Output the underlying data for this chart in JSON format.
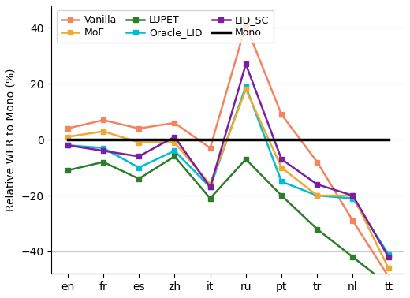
{
  "categories": [
    "en",
    "fr",
    "es",
    "zh",
    "it",
    "ru",
    "pt",
    "tr",
    "nl",
    "tt"
  ],
  "series_order": [
    "Vanilla",
    "Oracle_LID",
    "MoE",
    "LID_SC",
    "LUPET",
    "Mono"
  ],
  "series": {
    "Vanilla": [
      4,
      7,
      4,
      6,
      -3,
      41,
      9,
      -8,
      -29,
      -49
    ],
    "MoE": [
      1,
      3,
      -1,
      -1,
      -16,
      18,
      -10,
      -20,
      -20,
      -46
    ],
    "LUPET": [
      -11,
      -8,
      -14,
      -6,
      -21,
      -7,
      -20,
      -32,
      -42,
      -52
    ],
    "Oracle_LID": [
      -2,
      -3,
      -10,
      -4,
      -17,
      19,
      -15,
      -20,
      -21,
      -41
    ],
    "LID_SC": [
      -2,
      -4,
      -6,
      1,
      -17,
      27,
      -7,
      -16,
      -20,
      -42
    ],
    "Mono": [
      0,
      0,
      0,
      0,
      0,
      0,
      0,
      0,
      0,
      0
    ]
  },
  "colors": {
    "Vanilla": "#f4845f",
    "MoE": "#f0a830",
    "LUPET": "#2d7d2d",
    "Oracle_LID": "#00bcd4",
    "LID_SC": "#7b1fa2",
    "Mono": "#000000"
  },
  "linewidths": {
    "Vanilla": 1.8,
    "MoE": 1.8,
    "LUPET": 1.8,
    "Oracle_LID": 1.8,
    "LID_SC": 1.8,
    "Mono": 2.5
  },
  "markers": {
    "Vanilla": "s",
    "MoE": "s",
    "LUPET": "s",
    "Oracle_LID": "s",
    "LID_SC": "s",
    "Mono": null
  },
  "legend_order": [
    "Vanilla",
    "MoE",
    "LUPET",
    "Oracle_LID",
    "LID_SC",
    "Mono"
  ],
  "ylabel": "Relative WER to Mono (%)",
  "ylim": [
    -48,
    48
  ],
  "yticks": [
    -40,
    -20,
    0,
    20,
    40
  ],
  "figsize": [
    5.2,
    3.78
  ],
  "dpi": 100
}
